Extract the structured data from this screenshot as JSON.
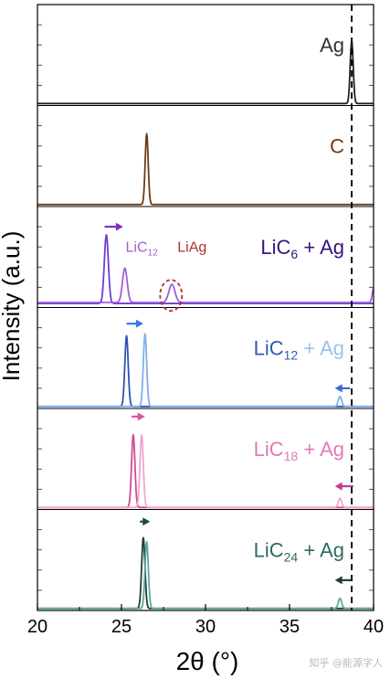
{
  "watermark": "知乎 @能源字人",
  "chart_data": {
    "type": "line",
    "xlabel": "2θ (°)",
    "ylabel": "Intensity (a.u.)",
    "xlim": [
      20,
      40
    ],
    "xticks": [
      20,
      25,
      30,
      35,
      40
    ],
    "grid": false,
    "reference_line_x": 38.7,
    "panels": [
      {
        "label": "Ag",
        "label_main": "Ag",
        "label_sub": "",
        "label_tail": "",
        "label_color": "#333333",
        "series": [
          {
            "color": "#222222",
            "baseline": 0.02,
            "peaks": [
              {
                "x": 38.7,
                "height": 0.62,
                "width": 0.09
              }
            ]
          }
        ]
      },
      {
        "label": "C",
        "label_main": "C",
        "label_sub": "",
        "label_tail": "",
        "label_color": "#6b3b18",
        "series": [
          {
            "color": "#6b3b18",
            "baseline": 0.02,
            "peaks": [
              {
                "x": 26.5,
                "height": 0.7,
                "width": 0.09
              }
            ]
          }
        ]
      },
      {
        "label": "LiC6 + Ag",
        "label_main": "LiC",
        "label_sub": "6",
        "label_tail": " + Ag",
        "label_color": "#3a137e",
        "annotations": [
          {
            "text": "LiC",
            "sub": "12",
            "x": 26.2,
            "y": 0.55,
            "color": "#a05fd8"
          },
          {
            "text": "LiAg",
            "x": 29.2,
            "y": 0.55,
            "color": "#b13030"
          }
        ],
        "circle_marker": {
          "x": 27.95,
          "y": 0.12,
          "color": "#b13030"
        },
        "shift_arrow": {
          "x_from": 24.0,
          "x_to": 25.1,
          "y": 0.8,
          "color": "#7a2fd0"
        },
        "series": [
          {
            "color": "#6d3fd0",
            "baseline": 0.04,
            "peaks": [
              {
                "x": 24.1,
                "height": 0.68,
                "width": 0.12
              }
            ]
          },
          {
            "color": "#9c5fe0",
            "baseline": 0.05,
            "peaks": [
              {
                "x": 25.2,
                "height": 0.34,
                "width": 0.14
              },
              {
                "x": 28.0,
                "height": 0.18,
                "width": 0.18
              },
              {
                "x": 40.0,
                "height": 0.14,
                "width": 0.08
              }
            ]
          }
        ]
      },
      {
        "label": "LiC12 + Ag",
        "label_main": "LiC",
        "label_sub": "12",
        "label_tail": " + Ag",
        "label_color": "#9cc0e8",
        "label_main_color": "#2f5bb5",
        "shift_arrow": {
          "x_from": 25.3,
          "x_to": 26.3,
          "y": 0.84,
          "color": "#3a7ae0"
        },
        "left_arrow": {
          "x_from": 38.6,
          "x_to": 37.7,
          "y": 0.2,
          "color": "#3a6ad0"
        },
        "series": [
          {
            "color": "#2e55b0",
            "baseline": 0.02,
            "peaks": [
              {
                "x": 25.3,
                "height": 0.7,
                "width": 0.1
              }
            ]
          },
          {
            "color": "#7fb0ea",
            "baseline": 0.02,
            "peaks": [
              {
                "x": 26.4,
                "height": 0.72,
                "width": 0.1
              },
              {
                "x": 38.0,
                "height": 0.1,
                "width": 0.1
              }
            ]
          }
        ]
      },
      {
        "label": "LiC18 + Ag",
        "label_main": "LiC",
        "label_sub": "18",
        "label_tail": " + Ag",
        "label_color": "#e07ab8",
        "shift_arrow": {
          "x_from": 25.6,
          "x_to": 26.4,
          "y": 0.92,
          "color": "#d8589e"
        },
        "left_arrow": {
          "x_from": 38.8,
          "x_to": 37.7,
          "y": 0.23,
          "color": "#c8368c"
        },
        "series": [
          {
            "color": "#d04a98",
            "baseline": 0.02,
            "peaks": [
              {
                "x": 25.7,
                "height": 0.72,
                "width": 0.1
              }
            ]
          },
          {
            "color": "#f2a6cc",
            "baseline": 0.02,
            "peaks": [
              {
                "x": 26.2,
                "height": 0.72,
                "width": 0.1
              },
              {
                "x": 38.0,
                "height": 0.09,
                "width": 0.1
              }
            ]
          }
        ]
      },
      {
        "label": "LiC24 + Ag",
        "label_main": "LiC",
        "label_sub": "24",
        "label_tail": " + Ag",
        "label_color": "#2d6a62",
        "shift_arrow": {
          "x_from": 26.1,
          "x_to": 26.7,
          "y": 0.88,
          "color": "#1e4a44"
        },
        "left_arrow": {
          "x_from": 38.7,
          "x_to": 37.7,
          "y": 0.3,
          "color": "#1e3e38"
        },
        "series": [
          {
            "color": "#1e3e38",
            "baseline": 0.02,
            "peaks": [
              {
                "x": 26.3,
                "height": 0.7,
                "width": 0.1
              }
            ]
          },
          {
            "color": "#5fa89c",
            "baseline": 0.02,
            "peaks": [
              {
                "x": 26.5,
                "height": 0.66,
                "width": 0.1
              },
              {
                "x": 38.0,
                "height": 0.1,
                "width": 0.1
              }
            ]
          }
        ]
      }
    ]
  }
}
